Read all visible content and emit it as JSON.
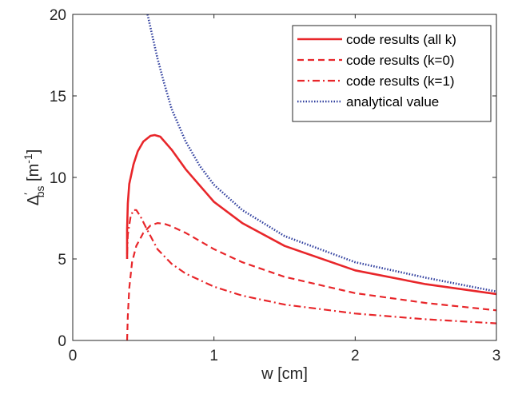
{
  "chart_data": {
    "type": "line",
    "xlabel": "w [cm]",
    "ylabel_main": "Δ",
    "ylabel_prime": "′",
    "ylabel_sub": "bs",
    "ylabel_unit": " [m",
    "ylabel_exp": "-1",
    "ylabel_close": "]",
    "xlim": [
      0,
      3
    ],
    "ylim": [
      0,
      20
    ],
    "xticks": [
      0,
      1,
      2,
      3
    ],
    "xtick_labels": [
      "0",
      "1",
      "2",
      "3"
    ],
    "yticks": [
      0,
      5,
      10,
      15,
      20
    ],
    "ytick_labels": [
      "0",
      "5",
      "10",
      "15",
      "20"
    ],
    "grid": false,
    "legend_position": "top-right",
    "series": [
      {
        "name": "code results (all k)",
        "color": "#e8262a",
        "style": "solid",
        "x": [
          0.385,
          0.385,
          0.39,
          0.4,
          0.43,
          0.46,
          0.5,
          0.55,
          0.58,
          0.62,
          0.7,
          0.8,
          1.0,
          1.2,
          1.5,
          2.0,
          2.5,
          3.0
        ],
        "y": [
          5.0,
          6.8,
          8.4,
          9.6,
          10.8,
          11.6,
          12.2,
          12.55,
          12.6,
          12.5,
          11.7,
          10.5,
          8.5,
          7.2,
          5.8,
          4.3,
          3.45,
          2.85
        ]
      },
      {
        "name": "code results (k=0)",
        "color": "#e8262a",
        "style": "dashed",
        "x": [
          0.385,
          0.39,
          0.4,
          0.42,
          0.45,
          0.5,
          0.55,
          0.6,
          0.65,
          0.7,
          0.8,
          1.0,
          1.2,
          1.5,
          2.0,
          2.5,
          3.0
        ],
        "y": [
          0.0,
          1.5,
          3.2,
          4.8,
          5.8,
          6.6,
          7.05,
          7.2,
          7.15,
          7.0,
          6.6,
          5.6,
          4.8,
          3.9,
          2.9,
          2.3,
          1.85
        ]
      },
      {
        "name": "code results (k=1)",
        "color": "#e8262a",
        "style": "dashdot",
        "x": [
          0.385,
          0.39,
          0.41,
          0.43,
          0.45,
          0.48,
          0.52,
          0.6,
          0.7,
          0.8,
          1.0,
          1.2,
          1.5,
          2.0,
          2.5,
          3.0
        ],
        "y": [
          5.3,
          6.5,
          7.6,
          8.0,
          8.0,
          7.6,
          6.9,
          5.6,
          4.7,
          4.1,
          3.3,
          2.75,
          2.2,
          1.65,
          1.3,
          1.05
        ]
      },
      {
        "name": "analytical value",
        "color": "#2f3e9e",
        "style": "dotted",
        "x": [
          0.53,
          0.55,
          0.6,
          0.65,
          0.7,
          0.8,
          0.9,
          1.0,
          1.2,
          1.5,
          2.0,
          2.5,
          3.0
        ],
        "y": [
          20.0,
          19.2,
          17.3,
          15.7,
          14.2,
          12.2,
          10.7,
          9.55,
          8.0,
          6.4,
          4.8,
          3.85,
          3.0
        ]
      }
    ]
  }
}
